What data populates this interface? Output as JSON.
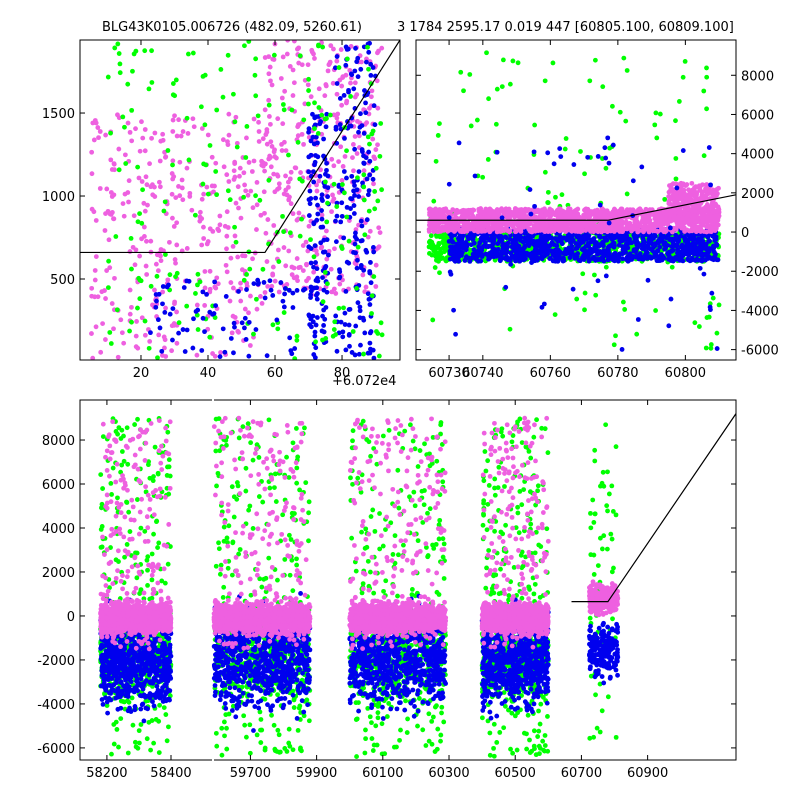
{
  "title_left": "BLG43K0105.006726 (482.09, 5260.61)",
  "title_right": "3 1784 2595.17 0.019 447 [60805.100, 60809.100]",
  "colors": {
    "green": "#00ff00",
    "blue": "#0000ee",
    "pink": "#ee60e0",
    "line": "#000000"
  },
  "chart_data": [
    {
      "type": "scatter",
      "panel": "top-left",
      "x_offset_label": "+6.072e4",
      "xlim": [
        1.8,
        97.3
      ],
      "ylim": [
        12,
        1940
      ],
      "xticks": [
        20,
        40,
        60,
        80
      ],
      "yticks": [
        500,
        1000,
        1500
      ],
      "model": [
        [
          1.8,
          660
        ],
        [
          57,
          660
        ],
        [
          97.3,
          1940
        ]
      ],
      "point_groups": [
        {
          "x": [
            5,
            57
          ],
          "y": [
            20,
            1500
          ],
          "n": 350,
          "color": "pink"
        },
        {
          "x": [
            57,
            92
          ],
          "y": [
            400,
            1940
          ],
          "n": 350,
          "color": "pink"
        },
        {
          "x": [
            70,
            76
          ],
          "y": [
            20,
            1500
          ],
          "n": 120,
          "color": "blue"
        },
        {
          "x": [
            78,
            90
          ],
          "y": [
            20,
            1940
          ],
          "n": 180,
          "color": "blue"
        },
        {
          "x": [
            10,
            92
          ],
          "y": [
            20,
            1940
          ],
          "n": 220,
          "color": "green"
        },
        {
          "x": [
            20,
            70
          ],
          "y": [
            20,
            500
          ],
          "n": 80,
          "color": "blue"
        }
      ]
    },
    {
      "type": "scatter",
      "panel": "top-right",
      "xlim": [
        60720.2,
        60815
      ],
      "ylim": [
        -6530,
        9800
      ],
      "xticks": [
        60740,
        60760,
        60780,
        60800
      ],
      "yticks": [
        -6000,
        -4000,
        -2000,
        0,
        2000,
        4000,
        6000,
        8000
      ],
      "xtick_labels_extra": [
        60730
      ],
      "model": [
        [
          60720.2,
          600
        ],
        [
          60777,
          600
        ],
        [
          60815,
          1900
        ]
      ],
      "point_groups": [
        {
          "x": [
            60724,
            60810
          ],
          "y": [
            -6000,
            9300
          ],
          "n": 120,
          "color": "green"
        },
        {
          "x": [
            60724,
            60810
          ],
          "y": [
            -1500,
            0
          ],
          "n": 900,
          "color": "green"
        },
        {
          "x": [
            60730,
            60810
          ],
          "y": [
            -1500,
            200
          ],
          "n": 1100,
          "color": "blue"
        },
        {
          "x": [
            60724,
            60810
          ],
          "y": [
            0,
            1200
          ],
          "n": 1400,
          "color": "pink"
        },
        {
          "x": [
            60795,
            60810
          ],
          "y": [
            500,
            2500
          ],
          "n": 300,
          "color": "pink"
        },
        {
          "x": [
            60730,
            60810
          ],
          "y": [
            -6000,
            5000
          ],
          "n": 60,
          "color": "blue"
        }
      ]
    },
    {
      "type": "scatter",
      "panel": "bottom",
      "xlim_left": [
        58116,
        58528
      ],
      "xlim_right": [
        59590,
        61167
      ],
      "ylim": [
        -6550,
        9820
      ],
      "xticks": [
        58200,
        58400,
        59700,
        59900,
        60100,
        60300,
        60500,
        60700,
        60900
      ],
      "yticks": [
        -6000,
        -4000,
        -2000,
        0,
        2000,
        4000,
        6000,
        8000
      ],
      "model": [
        [
          60670,
          650
        ],
        [
          60780,
          650
        ],
        [
          61167,
          9200
        ]
      ],
      "seasons": [
        [
          58180,
          58400
        ],
        [
          59590,
          59880
        ],
        [
          60000,
          60290
        ],
        [
          60400,
          60600
        ],
        [
          60724,
          60810
        ]
      ]
    }
  ]
}
